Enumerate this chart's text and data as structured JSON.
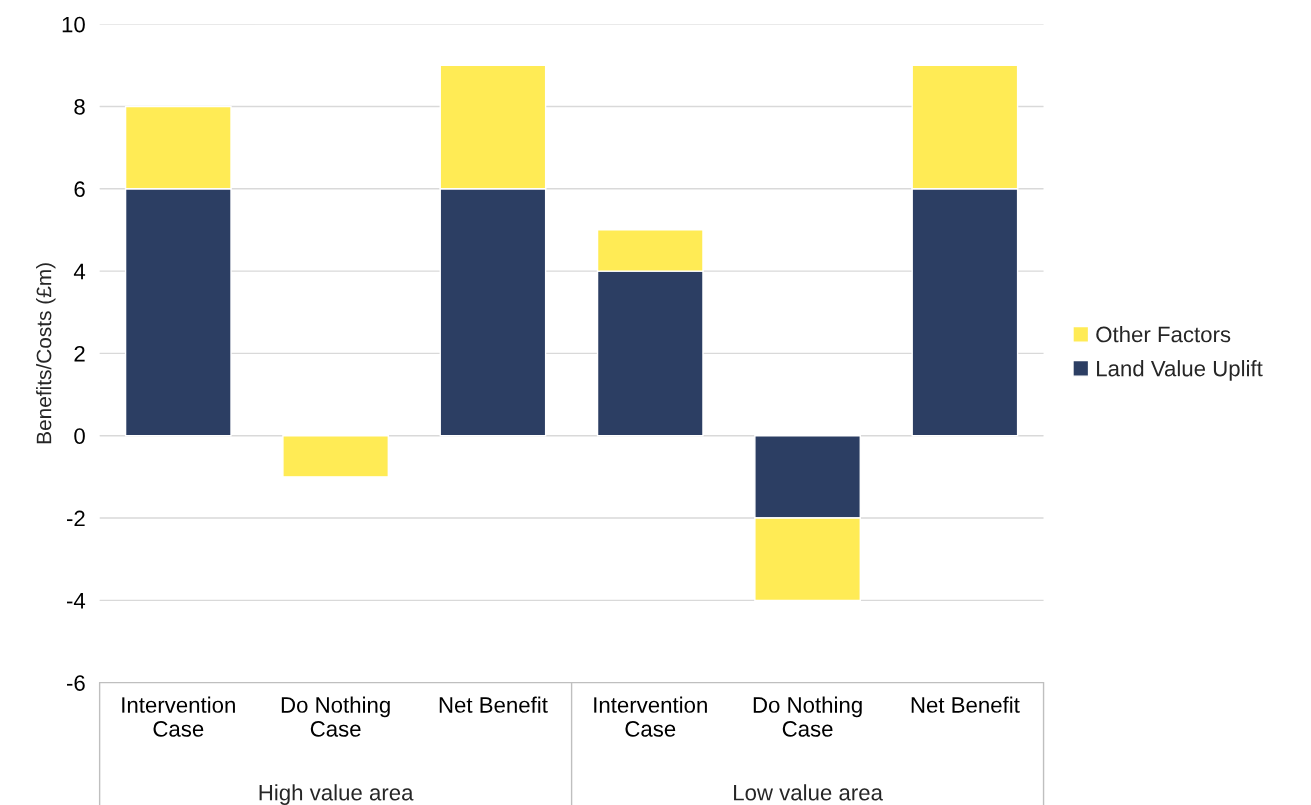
{
  "chart_data": {
    "type": "bar",
    "stacked": true,
    "ylabel": "Benefits/Costs (£m)",
    "categories": [
      "Intervention\nCase",
      "Do Nothing\nCase",
      "Net Benefit",
      "Intervention\nCase",
      "Do Nothing\nCase",
      "Net Benefit"
    ],
    "series": [
      {
        "name": "Land Value Uplift",
        "color": "#2c3e63",
        "values": [
          6,
          null,
          6,
          4,
          -2,
          6
        ]
      },
      {
        "name": "Other Factors",
        "color": "#ffeb55",
        "values": [
          2,
          -1,
          3,
          1,
          -2,
          3
        ]
      }
    ],
    "ylim": [
      -6,
      10
    ],
    "yticks": [
      -6,
      -4,
      -2,
      0,
      2,
      4,
      6,
      8,
      10
    ],
    "grid": "y",
    "legend": "right",
    "annotations": [
      "High value area",
      "Low value area"
    ]
  }
}
